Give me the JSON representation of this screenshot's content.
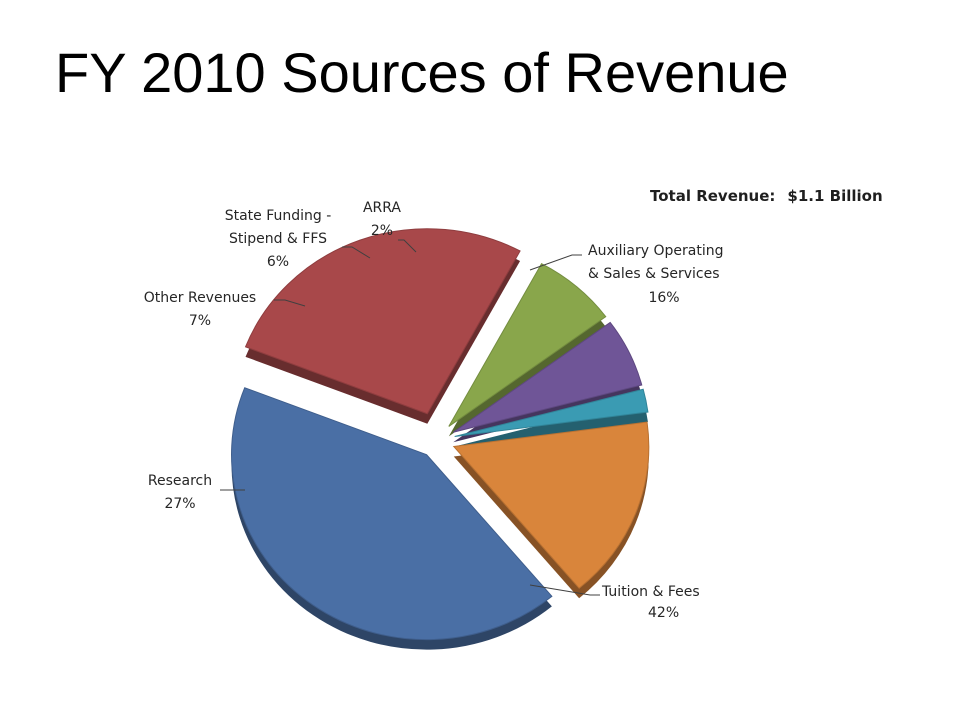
{
  "title": "FY 2010 Sources of Revenue",
  "total": {
    "label": "Total Revenue:",
    "value": "$1.1 Billion"
  },
  "chart_data": {
    "type": "pie",
    "exploded": true,
    "three_d": true,
    "slices": [
      {
        "name": "Tuition & Fees",
        "label_lines": [
          "Tuition & Fees"
        ],
        "value": 42,
        "pct_label": "42%",
        "color": "#4a6fa5"
      },
      {
        "name": "Research",
        "label_lines": [
          "Research"
        ],
        "value": 27,
        "pct_label": "27%",
        "color": "#a8484a"
      },
      {
        "name": "Other Revenues",
        "label_lines": [
          "Other Revenues"
        ],
        "value": 7,
        "pct_label": "7%",
        "color": "#89a64b"
      },
      {
        "name": "State Funding - Stipend & FFS",
        "label_lines": [
          "State Funding -",
          "Stipend & FFS"
        ],
        "value": 6,
        "pct_label": "6%",
        "color": "#6f5597"
      },
      {
        "name": "ARRA",
        "label_lines": [
          "ARRA"
        ],
        "value": 2,
        "pct_label": "2%",
        "color": "#3a9bb3"
      },
      {
        "name": "Auxiliary Operating & Sales & Services",
        "label_lines": [
          "Auxiliary Operating",
          "& Sales & Services"
        ],
        "value": 16,
        "pct_label": "16%",
        "color": "#d9853b"
      }
    ]
  }
}
